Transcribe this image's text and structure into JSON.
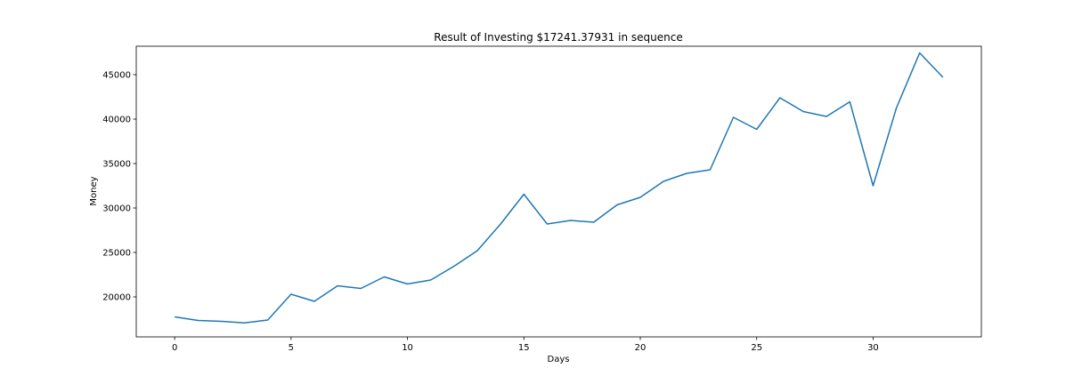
{
  "chart_data": {
    "type": "line",
    "title": "Result of Investing $17241.37931 in sequence",
    "xlabel": "Days",
    "ylabel": "Money",
    "xlim": [
      -1.65,
      34.65
    ],
    "ylim": [
      15500,
      48200
    ],
    "grid": false,
    "xticks": [
      0,
      5,
      10,
      15,
      20,
      25,
      30
    ],
    "yticks": [
      20000,
      25000,
      30000,
      35000,
      40000,
      45000
    ],
    "series": [
      {
        "color": "#1f77b4",
        "x": [
          0,
          1,
          2,
          3,
          4,
          5,
          6,
          7,
          8,
          9,
          10,
          11,
          12,
          13,
          14,
          15,
          16,
          17,
          18,
          19,
          20,
          21,
          22,
          23,
          24,
          25,
          26,
          27,
          28,
          29,
          30,
          31,
          32,
          33
        ],
        "y": [
          17750,
          17350,
          17250,
          17080,
          17400,
          20300,
          19500,
          21250,
          20950,
          22250,
          21450,
          21900,
          23450,
          25200,
          28200,
          31550,
          28200,
          28600,
          28400,
          30350,
          31200,
          33000,
          33900,
          34300,
          40200,
          38850,
          42400,
          40850,
          40300,
          41950,
          32500,
          41250,
          47450,
          44700
        ]
      }
    ]
  }
}
